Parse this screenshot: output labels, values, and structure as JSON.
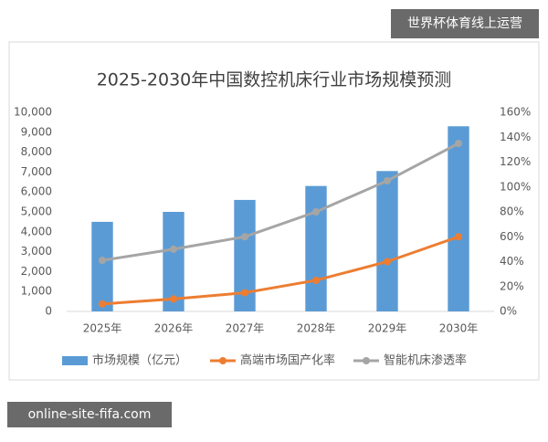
{
  "chart_data": {
    "type": "bar-line",
    "title": "2025-2030年中国数控机床行业市场规模预测",
    "categories": [
      "2025年",
      "2026年",
      "2027年",
      "2028年",
      "2029年",
      "2030年"
    ],
    "series": [
      {
        "name": "市场规模（亿元）",
        "type": "bar",
        "color": "#5b9bd5",
        "values": [
          4500,
          5000,
          5600,
          6300,
          7050,
          9300
        ]
      },
      {
        "name": "高端市场国产化率",
        "type": "line",
        "axis": "y2",
        "color": "#ed7d31",
        "values": [
          6,
          10,
          15,
          25,
          40,
          60
        ]
      },
      {
        "name": "智能机床渗透率",
        "type": "line",
        "axis": "y2",
        "color": "#a5a5a5",
        "values": [
          41,
          50,
          60,
          80,
          105,
          135
        ]
      }
    ],
    "ylim": [
      0,
      10000
    ],
    "yticks": [
      0,
      {
        "value": 1000,
        "label": "1,000"
      },
      {
        "value": 2000,
        "label": "2,000"
      },
      {
        "value": 3000,
        "label": "3,000"
      },
      {
        "value": 4000,
        "label": "4,000"
      },
      {
        "value": 5000,
        "label": "5,000"
      },
      {
        "value": 6000,
        "label": "6,000"
      },
      {
        "value": 7000,
        "label": "7,000"
      },
      {
        "value": 8000,
        "label": "8,000"
      },
      {
        "value": 9000,
        "label": "9,000"
      },
      {
        "value": 10000,
        "label": "10,000"
      }
    ],
    "y2lim": [
      0,
      160
    ],
    "y2ticks": [
      {
        "value": 0,
        "label": "0%"
      },
      {
        "value": 20,
        "label": "20%"
      },
      {
        "value": 40,
        "label": "40%"
      },
      {
        "value": 60,
        "label": "60%"
      },
      {
        "value": 80,
        "label": "80%"
      },
      {
        "value": 100,
        "label": "100%"
      },
      {
        "value": 120,
        "label": "120%"
      },
      {
        "value": 140,
        "label": "140%"
      },
      {
        "value": 160,
        "label": "160%"
      }
    ],
    "grid": false,
    "legend": "bottom"
  },
  "watermarks": {
    "top_right": "世界杯体育线上运营",
    "bottom_left": "online-site-fifa.com"
  }
}
